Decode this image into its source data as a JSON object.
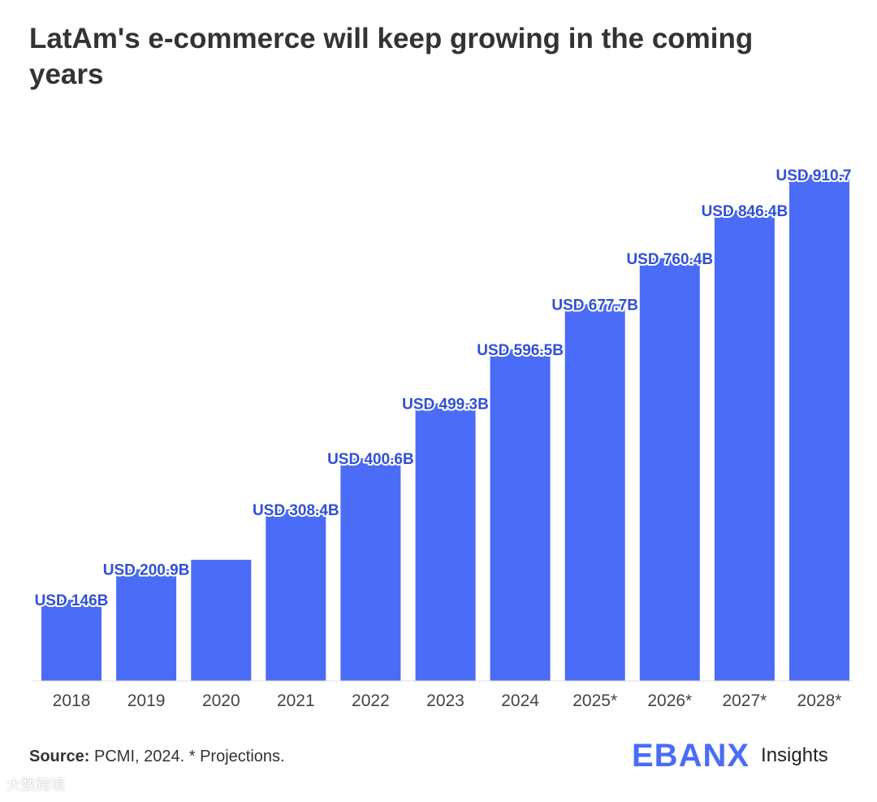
{
  "title": "LatAm's e-commerce will keep growing in the coming years",
  "chart_data": {
    "type": "bar",
    "title": "LatAm's e-commerce will keep growing in the coming years",
    "categories": [
      "2018",
      "2019",
      "2020",
      "2021",
      "2022",
      "2023",
      "2024",
      "2025*",
      "2026*",
      "2027*",
      "2028*"
    ],
    "values": [
      146,
      200.9,
      218,
      308.4,
      400.6,
      499.3,
      596.5,
      677.7,
      760.4,
      846.4,
      910.7
    ],
    "data_labels": [
      "USD 146B",
      "USD 200.9B",
      "",
      "USD 308.4B",
      "USD 400.6B",
      "USD 499.3B",
      "USD 596.5B",
      "USD 677.7B",
      "USD 760.4B",
      "USD 846.4B",
      "USD 910.7"
    ],
    "xlabel": "",
    "ylabel": "",
    "ylim": [
      0,
      910.7
    ],
    "bar_color": "#4a6cf7",
    "grid": false,
    "legend": "none"
  },
  "footer": {
    "source_label": "Source:",
    "source_text": " PCMI, 2024. * Projections."
  },
  "brand": {
    "logo": "EBANX",
    "suffix": "Insights"
  },
  "watermark": "大数跨境"
}
